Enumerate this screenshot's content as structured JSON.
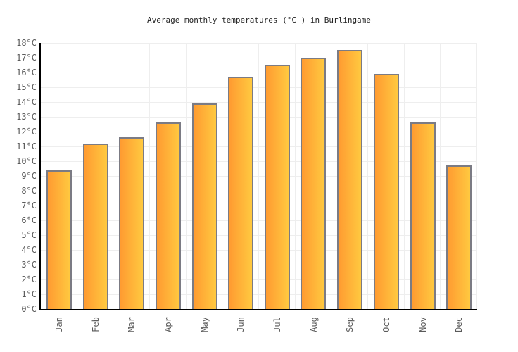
{
  "title": "Average monthly temperatures (°C ) in Burlingame",
  "colors": {
    "background": "#ffffff",
    "bar_gradient_left": "#ff9b31",
    "bar_gradient_right": "#ffc940",
    "bar_border": "#7b7b84",
    "axis_line": "#000000",
    "gridline": "#eeeeee",
    "tick_label": "#5a5a5a",
    "title_text": "#222222"
  },
  "chart_data": {
    "type": "bar",
    "title": "Average monthly temperatures (°C ) in Burlingame",
    "categories": [
      "Jan",
      "Feb",
      "Mar",
      "Apr",
      "May",
      "Jun",
      "Jul",
      "Aug",
      "Sep",
      "Oct",
      "Nov",
      "Dec"
    ],
    "values": [
      9.4,
      11.2,
      11.6,
      12.6,
      13.9,
      15.7,
      16.5,
      17.0,
      17.5,
      15.9,
      12.6,
      9.7
    ],
    "xlabel": "",
    "ylabel": "",
    "y_unit": "°C",
    "ylim": [
      0,
      18
    ],
    "y_tick_step": 1,
    "x_tick_rotation_deg": -90,
    "grid": true,
    "legend": false
  }
}
